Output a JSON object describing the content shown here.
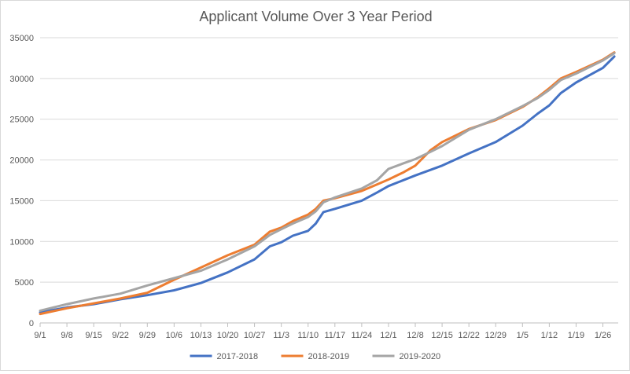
{
  "chart_data": {
    "type": "line",
    "title": "Applicant Volume Over 3 Year Period",
    "xlabel": "",
    "ylabel": "",
    "ylim": [
      0,
      35000
    ],
    "yticks": [
      0,
      5000,
      10000,
      15000,
      20000,
      25000,
      30000,
      35000
    ],
    "x_tick_labels": [
      "9/1",
      "9/8",
      "9/15",
      "9/22",
      "9/29",
      "10/6",
      "10/13",
      "10/20",
      "10/27",
      "11/3",
      "11/10",
      "11/17",
      "11/24",
      "12/1",
      "12/8",
      "12/15",
      "12/22",
      "12/29",
      "1/5",
      "1/12",
      "1/19",
      "1/26"
    ],
    "x_days": [
      0,
      7,
      14,
      21,
      28,
      35,
      42,
      49,
      56,
      63,
      70,
      77,
      84,
      91,
      98,
      105,
      112,
      119,
      126,
      133,
      140,
      147
    ],
    "x_range": [
      0,
      151
    ],
    "grid": "horizontal",
    "legend_position": "bottom",
    "series": [
      {
        "name": "2017-2018",
        "color": "#4472c4",
        "x": [
          0,
          7,
          14,
          21,
          28,
          35,
          42,
          49,
          56,
          60,
          63,
          66,
          70,
          72,
          74,
          77,
          84,
          88,
          91,
          98,
          105,
          112,
          119,
          126,
          130,
          133,
          136,
          140,
          147,
          150
        ],
        "values": [
          1300,
          1900,
          2300,
          2900,
          3400,
          4000,
          4900,
          6200,
          7800,
          9400,
          9900,
          10700,
          11300,
          12200,
          13600,
          14000,
          15000,
          16000,
          16800,
          18100,
          19300,
          20800,
          22200,
          24200,
          25700,
          26700,
          28200,
          29500,
          31300,
          32700
        ]
      },
      {
        "name": "2018-2019",
        "color": "#ed7d31",
        "x": [
          0,
          7,
          14,
          21,
          28,
          35,
          42,
          49,
          56,
          60,
          63,
          66,
          70,
          72,
          74,
          77,
          84,
          88,
          91,
          95,
          98,
          102,
          105,
          112,
          119,
          126,
          130,
          133,
          136,
          140,
          147,
          150
        ],
        "values": [
          1100,
          1800,
          2400,
          3000,
          3700,
          5300,
          6800,
          8300,
          9600,
          11200,
          11700,
          12500,
          13300,
          14000,
          15000,
          15300,
          16200,
          17000,
          17600,
          18500,
          19300,
          21200,
          22200,
          23800,
          24900,
          26500,
          27700,
          28800,
          30000,
          30800,
          32300,
          33200
        ]
      },
      {
        "name": "2019-2020",
        "color": "#a5a5a5",
        "x": [
          0,
          7,
          14,
          21,
          28,
          35,
          42,
          49,
          56,
          60,
          63,
          66,
          70,
          72,
          74,
          77,
          84,
          88,
          91,
          95,
          98,
          102,
          105,
          112,
          119,
          126,
          130,
          133,
          136,
          140,
          147,
          150
        ],
        "values": [
          1500,
          2300,
          3000,
          3600,
          4600,
          5500,
          6400,
          7800,
          9400,
          10800,
          11500,
          12200,
          13000,
          13700,
          14800,
          15400,
          16500,
          17500,
          18900,
          19600,
          20100,
          21000,
          21700,
          23700,
          25000,
          26600,
          27600,
          28600,
          29800,
          30600,
          32200,
          33100
        ]
      }
    ]
  }
}
